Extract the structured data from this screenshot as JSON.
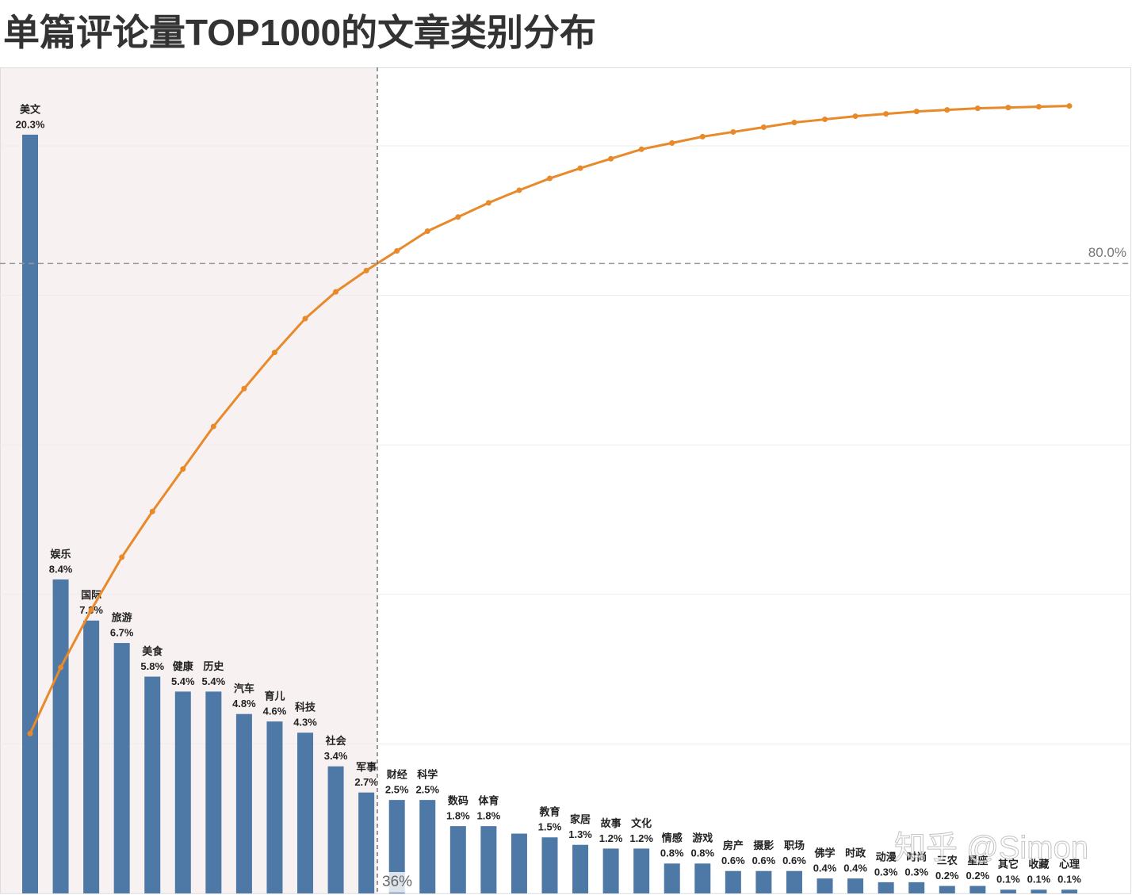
{
  "chart_data": {
    "type": "pareto",
    "title": "单篇评论量TOP1000的文章类别分布",
    "categories": [
      "美文",
      "娱乐",
      "国际",
      "旅游",
      "美食",
      "健康",
      "历史",
      "汽车",
      "育儿",
      "科技",
      "社会",
      "军事",
      "财经",
      "科学",
      "数码",
      "体育",
      null,
      "教育",
      "家居",
      "故事",
      "文化",
      "情感",
      "游戏",
      "房产",
      "摄影",
      "职场",
      "佛学",
      "时政",
      "动漫",
      "时尚",
      "三农",
      "星座",
      "其它",
      "收藏",
      "心理"
    ],
    "series": [
      {
        "type": "bar",
        "color": "#4e79a7",
        "values": [
          20.3,
          8.4,
          7.3,
          6.7,
          5.8,
          5.4,
          5.4,
          4.8,
          4.6,
          4.3,
          3.4,
          2.7,
          2.5,
          2.5,
          1.8,
          1.8,
          1.6,
          1.5,
          1.3,
          1.2,
          1.2,
          0.8,
          0.8,
          0.6,
          0.6,
          0.6,
          0.4,
          0.4,
          0.3,
          0.3,
          0.2,
          0.2,
          0.1,
          0.1,
          0.1
        ],
        "value_labels": [
          "20.3%",
          "8.4%",
          "7.3%",
          "6.7%",
          "5.8%",
          "5.4%",
          "5.4%",
          "4.8%",
          "4.6%",
          "4.3%",
          "3.4%",
          "2.7%",
          "2.5%",
          "2.5%",
          "1.8%",
          "1.8%",
          null,
          "1.5%",
          "1.3%",
          "1.2%",
          "1.2%",
          "0.8%",
          "0.8%",
          "0.6%",
          "0.6%",
          "0.6%",
          "0.4%",
          "0.4%",
          "0.3%",
          "0.3%",
          "0.2%",
          "0.2%",
          "0.1%",
          "0.1%",
          "0.1%"
        ]
      },
      {
        "type": "line",
        "axis": "y2",
        "color": "#e8892a",
        "values": [
          20.3,
          28.7,
          36,
          42.7,
          48.5,
          53.9,
          59.3,
          64.1,
          68.7,
          73,
          76.4,
          79.1,
          81.6,
          84.1,
          85.9,
          87.7,
          89.3,
          90.8,
          92.1,
          93.3,
          94.5,
          95.3,
          96.1,
          96.7,
          97.3,
          97.9,
          98.3,
          98.7,
          99,
          99.3,
          99.5,
          99.7,
          99.8,
          99.9,
          100
        ]
      }
    ],
    "ylim": [
      0,
      22.1
    ],
    "yticks": [
      0,
      4,
      8,
      12,
      16,
      20
    ],
    "y2lim": [
      0,
      104.9
    ],
    "threshold": {
      "value": 80,
      "label": "80.0%"
    },
    "category_share_label": "36%",
    "grid": true,
    "watermark": "知乎 @Simon"
  }
}
